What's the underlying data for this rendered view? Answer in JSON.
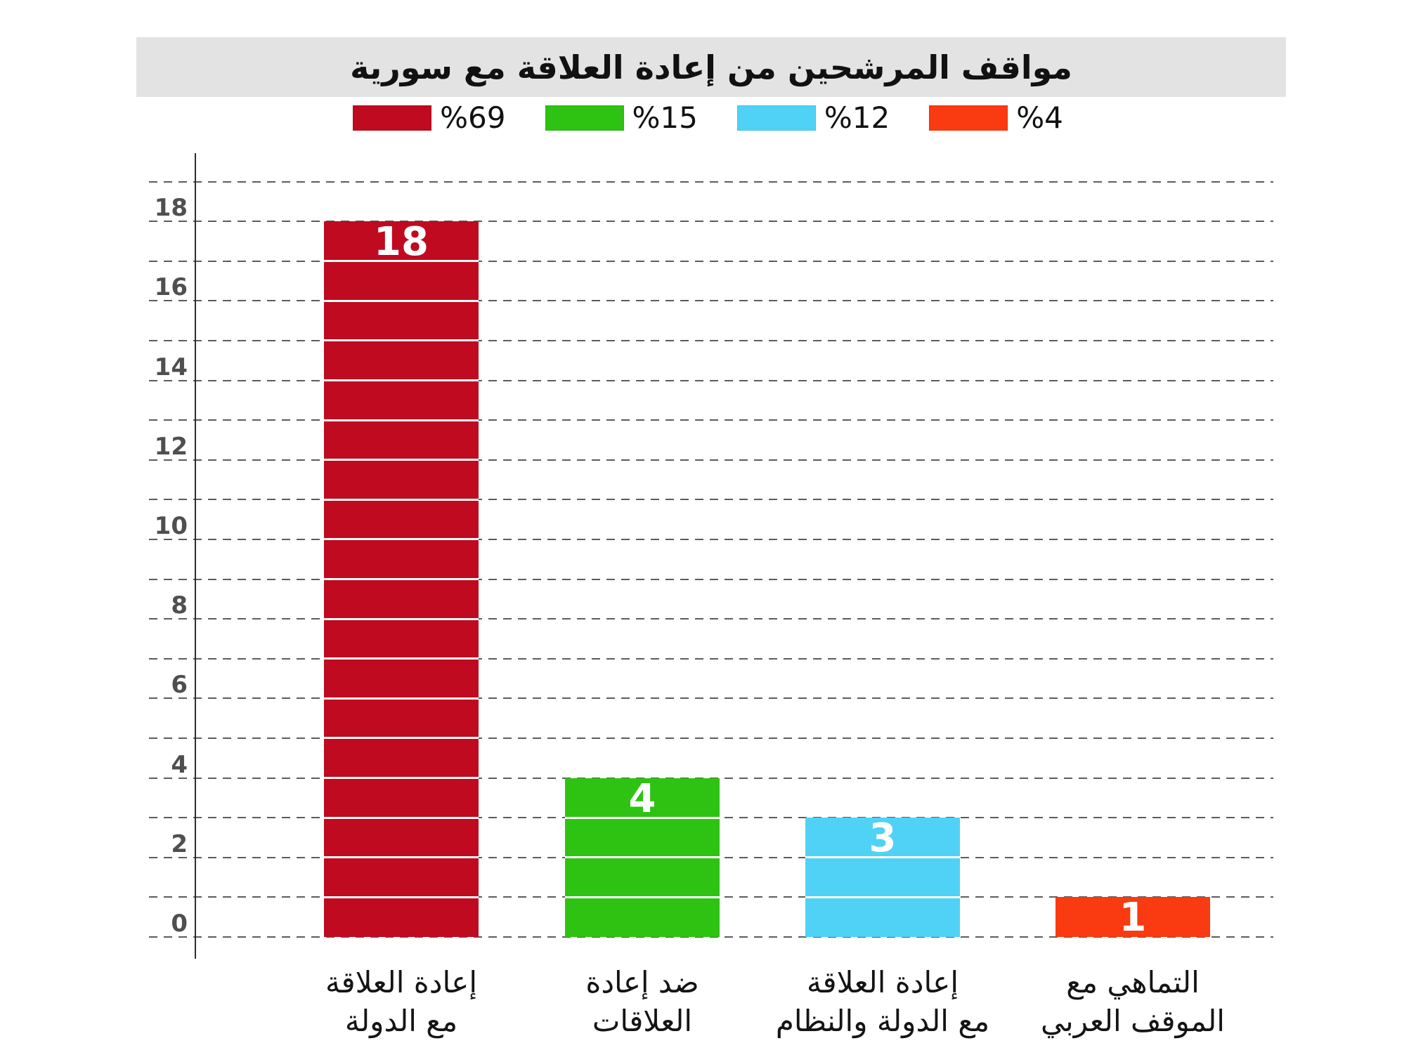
{
  "chart_data": {
    "type": "bar",
    "title": "مواقف المرشحين من إعادة العلاقة مع سورية",
    "legend": [
      {
        "label": "%69",
        "color": "#bf0a20"
      },
      {
        "label": "%15",
        "color": "#2ec312"
      },
      {
        "label": "%12",
        "color": "#4fd2f6"
      },
      {
        "label": "%4",
        "color": "#fa3a10"
      }
    ],
    "legend_position": "top",
    "categories": [
      "إعادة العلاقة مع الدولة",
      "ضد إعادة العلاقات",
      "إعادة العلاقة مع الدولة والنظام",
      "التماهي مع الموقف العربي"
    ],
    "categories_lines": [
      [
        "إعادة العلاقة",
        "مع الدولة"
      ],
      [
        "ضد إعادة",
        "العلاقات"
      ],
      [
        "إعادة العلاقة",
        "مع الدولة والنظام"
      ],
      [
        "التماهي مع",
        "الموقف العربي"
      ]
    ],
    "values": [
      18,
      4,
      3,
      1
    ],
    "value_labels": [
      "18",
      "4",
      "3",
      "1"
    ],
    "colors": [
      "#bf0a20",
      "#2ec312",
      "#4fd2f6",
      "#fa3a10"
    ],
    "ylim": [
      0,
      19
    ],
    "yticks": [
      0,
      2,
      4,
      6,
      8,
      10,
      12,
      14,
      16,
      18
    ],
    "grid": {
      "horizontal": true,
      "style": "dashed",
      "interval": 1
    },
    "title_bar_color": "#e3e3e3",
    "grid_color": "#5c5c5c",
    "axis_color": "#2e2e2e",
    "tick_text_color": "#4f4f4f",
    "bar_value_text_color": "#ffffff"
  }
}
